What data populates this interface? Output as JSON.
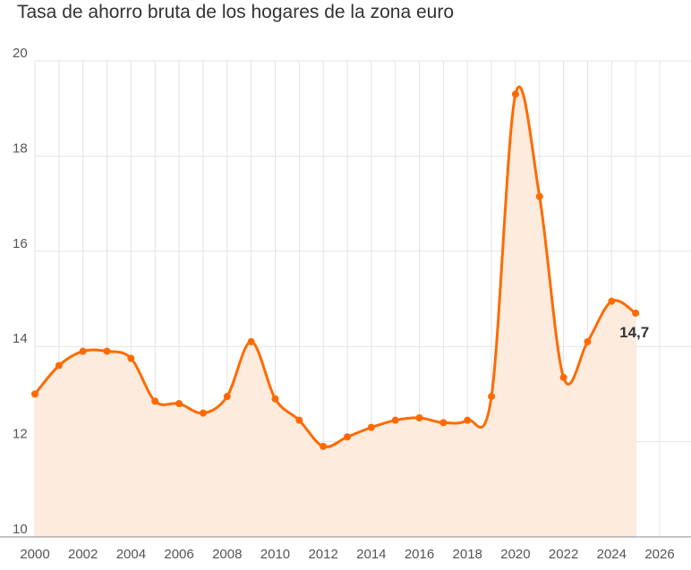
{
  "chart_data": {
    "type": "area",
    "title": "Tasa de ahorro bruta de los hogares de la zona euro",
    "xlabel": "",
    "ylabel": "",
    "xlim": [
      2000,
      2026
    ],
    "ylim": [
      10,
      20
    ],
    "x_ticks": [
      "2000",
      "2002",
      "2004",
      "2006",
      "2008",
      "2010",
      "2012",
      "2014",
      "2016",
      "2018",
      "2020",
      "2022",
      "2024",
      "2026"
    ],
    "y_ticks": [
      "10",
      "12",
      "14",
      "16",
      "18",
      "20"
    ],
    "grid": true,
    "legend": "none",
    "line_color": "#ff6a00",
    "fill_color": "#fdebdd",
    "x": [
      2000,
      2001,
      2002,
      2003,
      2004,
      2005,
      2006,
      2007,
      2008,
      2009,
      2010,
      2011,
      2012,
      2013,
      2014,
      2015,
      2016,
      2017,
      2018,
      2019,
      2020,
      2021,
      2022,
      2023,
      2024,
      2025
    ],
    "values": [
      13.0,
      13.6,
      13.9,
      13.9,
      13.75,
      12.85,
      12.8,
      12.6,
      12.95,
      14.1,
      12.9,
      12.45,
      11.9,
      12.1,
      12.3,
      12.45,
      12.5,
      12.4,
      12.45,
      12.95,
      19.3,
      17.15,
      13.35,
      14.1,
      14.95,
      14.7
    ],
    "last_label": "14,7"
  }
}
